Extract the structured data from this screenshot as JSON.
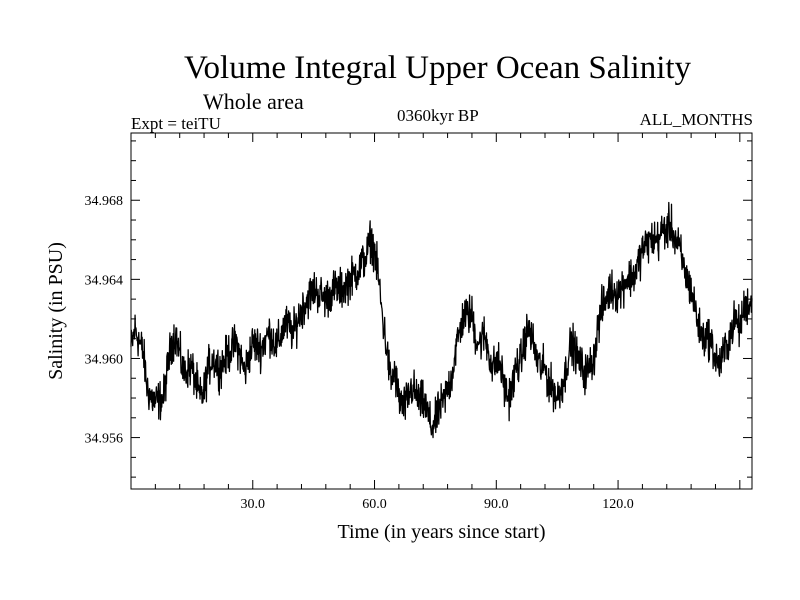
{
  "chart_data": {
    "type": "line",
    "title": "Volume Integral Upper Ocean Salinity",
    "subtitle": "Whole area",
    "annotations": {
      "experiment": "Expt = teiTU",
      "period": "0360kyr BP",
      "months": "ALL_MONTHS"
    },
    "xlabel": "Time (in years since start)",
    "ylabel": "Salinity (in PSU)",
    "xlim": [
      0,
      153
    ],
    "ylim": [
      34.9534,
      34.9714
    ],
    "x_ticks": [
      {
        "value": 30,
        "label": "30.0"
      },
      {
        "value": 60,
        "label": "60.0"
      },
      {
        "value": 90,
        "label": "90.0"
      },
      {
        "value": 120,
        "label": "120.0"
      }
    ],
    "y_ticks": [
      {
        "value": 34.956,
        "label": "34.956"
      },
      {
        "value": 34.96,
        "label": "34.960"
      },
      {
        "value": 34.964,
        "label": "34.964"
      },
      {
        "value": 34.968,
        "label": "34.968"
      }
    ],
    "grid": false,
    "series": [
      {
        "name": "salinity",
        "noise_amplitude": 0.0011,
        "samples_per_year": 12,
        "trend_x": [
          0,
          1,
          3,
          4,
          5,
          6,
          8,
          9,
          10,
          11,
          12,
          13,
          14,
          15,
          16,
          17,
          18,
          19,
          20,
          22,
          24,
          26,
          28,
          30,
          32,
          34,
          36,
          38,
          40,
          42,
          45,
          48,
          50,
          52,
          54,
          56,
          58,
          59,
          60,
          61,
          62,
          63,
          64,
          65,
          66,
          67,
          68,
          69,
          70,
          71,
          72,
          73,
          74,
          75,
          76,
          77,
          78,
          79,
          80,
          82,
          84,
          85,
          86,
          87,
          88,
          89,
          90,
          91,
          92,
          93,
          94,
          95,
          96,
          97,
          98,
          99,
          100,
          101,
          102,
          103,
          104,
          105,
          106,
          107,
          108,
          109,
          110,
          112,
          114,
          115,
          116,
          118,
          120,
          122,
          124,
          126,
          128,
          130,
          131,
          132,
          133,
          134,
          135,
          136,
          137,
          138,
          139,
          140,
          141,
          142,
          143,
          144,
          145,
          146,
          147,
          148,
          149,
          150,
          151,
          152,
          153
        ],
        "trend_y": [
          34.9605,
          34.9615,
          34.9603,
          34.9585,
          34.958,
          34.9578,
          34.958,
          34.9595,
          34.9608,
          34.9612,
          34.9602,
          34.9592,
          34.9595,
          34.9595,
          34.9588,
          34.958,
          34.9583,
          34.9595,
          34.96,
          34.9595,
          34.9603,
          34.9608,
          34.9593,
          34.9608,
          34.9605,
          34.9613,
          34.9606,
          34.9618,
          34.9613,
          34.9625,
          34.9635,
          34.963,
          34.9635,
          34.9635,
          34.964,
          34.9645,
          34.9652,
          34.966,
          34.9655,
          34.964,
          34.962,
          34.9605,
          34.9588,
          34.9593,
          34.958,
          34.9575,
          34.9578,
          34.9585,
          34.9583,
          34.9578,
          34.9578,
          34.9573,
          34.9565,
          34.9568,
          34.9575,
          34.9578,
          34.9585,
          34.959,
          34.9605,
          34.9622,
          34.9622,
          34.961,
          34.9608,
          34.9612,
          34.9605,
          34.9595,
          34.9598,
          34.9597,
          34.9585,
          34.958,
          34.9586,
          34.9597,
          34.9598,
          34.961,
          34.9615,
          34.9608,
          34.96,
          34.9595,
          34.9595,
          34.9587,
          34.9585,
          34.958,
          34.9585,
          34.9592,
          34.9605,
          34.9607,
          34.96,
          34.9592,
          34.96,
          34.9615,
          34.9625,
          34.9635,
          34.9633,
          34.964,
          34.9642,
          34.9655,
          34.966,
          34.966,
          34.9665,
          34.9665,
          34.9668,
          34.966,
          34.9656,
          34.9648,
          34.964,
          34.9635,
          34.9625,
          34.9615,
          34.961,
          34.9612,
          34.9608,
          34.96,
          34.9597,
          34.9602,
          34.9608,
          34.9615,
          34.962,
          34.9615,
          34.9625,
          34.9628,
          34.9628
        ]
      }
    ]
  }
}
